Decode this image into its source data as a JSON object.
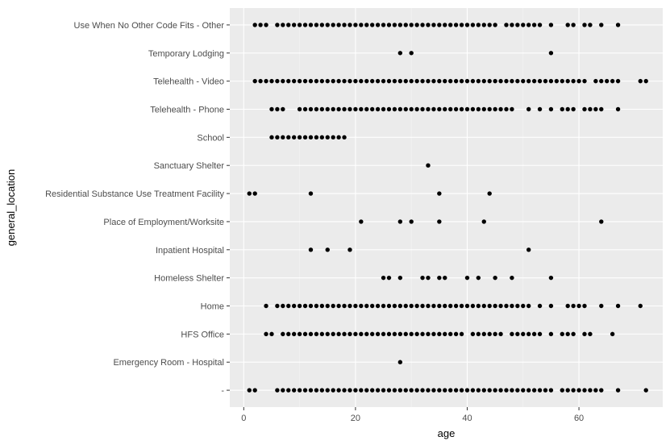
{
  "chart_data": {
    "type": "scatter",
    "xlabel": "age",
    "ylabel": "general_location",
    "xlim": [
      -2.5,
      75
    ],
    "x_ticks": [
      0,
      20,
      40,
      60
    ],
    "categories": [
      "-",
      "Emergency Room - Hospital",
      "HFS Office",
      "Home",
      "Homeless Shelter",
      "Inpatient Hospital",
      "Place of Employment/Worksite",
      "Residential Substance Use Treatment Facility",
      "Sanctuary Shelter",
      "School",
      "Telehealth - Phone",
      "Telehealth - Video",
      "Temporary Lodging",
      "Use When No Other Code Fits - Other"
    ],
    "series": [
      {
        "category": "-",
        "x": [
          1,
          2,
          6,
          7,
          8,
          9,
          10,
          11,
          12,
          13,
          14,
          15,
          16,
          17,
          18,
          19,
          20,
          21,
          22,
          23,
          24,
          25,
          26,
          27,
          28,
          29,
          30,
          31,
          32,
          33,
          34,
          35,
          36,
          37,
          38,
          39,
          40,
          41,
          42,
          43,
          44,
          45,
          46,
          47,
          48,
          49,
          50,
          51,
          52,
          53,
          54,
          55,
          57,
          58,
          59,
          60,
          61,
          62,
          63,
          64,
          67,
          72
        ]
      },
      {
        "category": "Emergency Room - Hospital",
        "x": [
          28
        ]
      },
      {
        "category": "HFS Office",
        "x": [
          4,
          5,
          7,
          8,
          9,
          10,
          11,
          12,
          13,
          14,
          15,
          16,
          17,
          18,
          19,
          20,
          21,
          22,
          23,
          24,
          25,
          26,
          27,
          28,
          29,
          30,
          31,
          32,
          33,
          34,
          35,
          36,
          37,
          38,
          39,
          41,
          42,
          43,
          44,
          45,
          46,
          48,
          49,
          50,
          51,
          52,
          53,
          55,
          57,
          58,
          59,
          61,
          62,
          66
        ]
      },
      {
        "category": "Home",
        "x": [
          4,
          6,
          7,
          8,
          9,
          10,
          11,
          12,
          13,
          14,
          15,
          16,
          17,
          18,
          19,
          20,
          21,
          22,
          23,
          24,
          25,
          26,
          27,
          28,
          29,
          30,
          31,
          32,
          33,
          34,
          35,
          36,
          37,
          38,
          39,
          40,
          41,
          42,
          43,
          44,
          45,
          46,
          47,
          48,
          49,
          50,
          51,
          53,
          55,
          58,
          59,
          60,
          61,
          64,
          67,
          71
        ]
      },
      {
        "category": "Homeless Shelter",
        "x": [
          25,
          26,
          28,
          32,
          33,
          35,
          36,
          40,
          42,
          45,
          48,
          55
        ]
      },
      {
        "category": "Inpatient Hospital",
        "x": [
          12,
          15,
          19,
          51
        ]
      },
      {
        "category": "Place of Employment/Worksite",
        "x": [
          21,
          28,
          30,
          35,
          43,
          64
        ]
      },
      {
        "category": "Residential Substance Use Treatment Facility",
        "x": [
          1,
          2,
          12,
          35,
          44
        ]
      },
      {
        "category": "Sanctuary Shelter",
        "x": [
          33
        ]
      },
      {
        "category": "School",
        "x": [
          5,
          6,
          7,
          8,
          9,
          10,
          11,
          12,
          13,
          14,
          15,
          16,
          17,
          18
        ]
      },
      {
        "category": "Telehealth - Phone",
        "x": [
          5,
          6,
          7,
          10,
          11,
          12,
          13,
          14,
          15,
          16,
          17,
          18,
          19,
          20,
          21,
          22,
          23,
          24,
          25,
          26,
          27,
          28,
          29,
          30,
          31,
          32,
          33,
          34,
          35,
          36,
          37,
          38,
          39,
          40,
          41,
          42,
          43,
          44,
          45,
          46,
          47,
          48,
          51,
          53,
          55,
          57,
          58,
          59,
          61,
          62,
          63,
          64,
          67
        ]
      },
      {
        "category": "Telehealth - Video",
        "x": [
          2,
          3,
          4,
          5,
          6,
          7,
          8,
          9,
          10,
          11,
          12,
          13,
          14,
          15,
          16,
          17,
          18,
          19,
          20,
          21,
          22,
          23,
          24,
          25,
          26,
          27,
          28,
          29,
          30,
          31,
          32,
          33,
          34,
          35,
          36,
          37,
          38,
          39,
          40,
          41,
          42,
          43,
          44,
          45,
          46,
          47,
          48,
          49,
          50,
          51,
          52,
          53,
          54,
          55,
          56,
          57,
          58,
          59,
          60,
          61,
          63,
          64,
          65,
          66,
          67,
          71,
          72
        ]
      },
      {
        "category": "Temporary Lodging",
        "x": [
          28,
          30,
          55
        ]
      },
      {
        "category": "Use When No Other Code Fits - Other",
        "x": [
          2,
          3,
          4,
          6,
          7,
          8,
          9,
          10,
          11,
          12,
          13,
          14,
          15,
          16,
          17,
          18,
          19,
          20,
          21,
          22,
          23,
          24,
          25,
          26,
          27,
          28,
          29,
          30,
          31,
          32,
          33,
          34,
          35,
          36,
          37,
          38,
          39,
          40,
          41,
          42,
          43,
          44,
          45,
          47,
          48,
          49,
          50,
          51,
          52,
          53,
          55,
          58,
          59,
          61,
          62,
          64,
          67
        ]
      }
    ],
    "grid": true,
    "legend": "none",
    "colors": {
      "panel_background": "#ebebeb",
      "grid_major": "#ffffff",
      "grid_minor": "#f5f5f5",
      "point": "#000000",
      "tick_label": "#4d4d4d",
      "axis_title": "#000000"
    }
  }
}
